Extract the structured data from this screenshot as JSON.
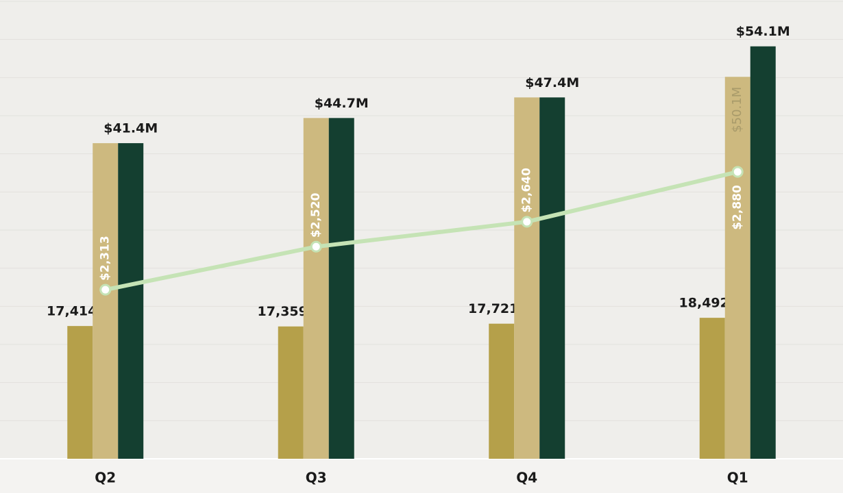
{
  "chart_data": {
    "type": "bar",
    "categories": [
      "Q2",
      "Q3",
      "Q4",
      "Q1"
    ],
    "ylim": [
      0,
      60
    ],
    "yticks": [
      0,
      5,
      10,
      15,
      20,
      25,
      30,
      35,
      40,
      45,
      50,
      55,
      60
    ],
    "y2lim": [
      0,
      60000
    ],
    "y3lim": [
      1500,
      3700
    ],
    "grid": true,
    "series": [
      {
        "color": "#b5a04a",
        "axis": "y2",
        "values": [
          17414,
          17359,
          17721,
          18492
        ],
        "value_labels": [
          "17,414oz",
          "17,359oz",
          "17,721oz",
          "18,492oz"
        ]
      },
      {
        "color": "#cdb97f",
        "values": [
          41.4,
          44.7,
          47.4,
          50.1
        ],
        "value_labels": [
          null,
          null,
          null,
          "$50.1M"
        ]
      },
      {
        "color": "#143f30",
        "values": [
          41.4,
          44.7,
          47.4,
          54.1
        ],
        "value_labels": [
          "$41.4M",
          "$44.7M",
          "$47.4M",
          "$54.1M"
        ]
      },
      {
        "type": "line",
        "color": "#c5e3b5",
        "axis": "y3",
        "values": [
          2313,
          2520,
          2640,
          2880
        ],
        "value_labels": [
          "$2,313",
          "$2,520",
          "$2,640",
          "$2,880"
        ]
      }
    ]
  }
}
